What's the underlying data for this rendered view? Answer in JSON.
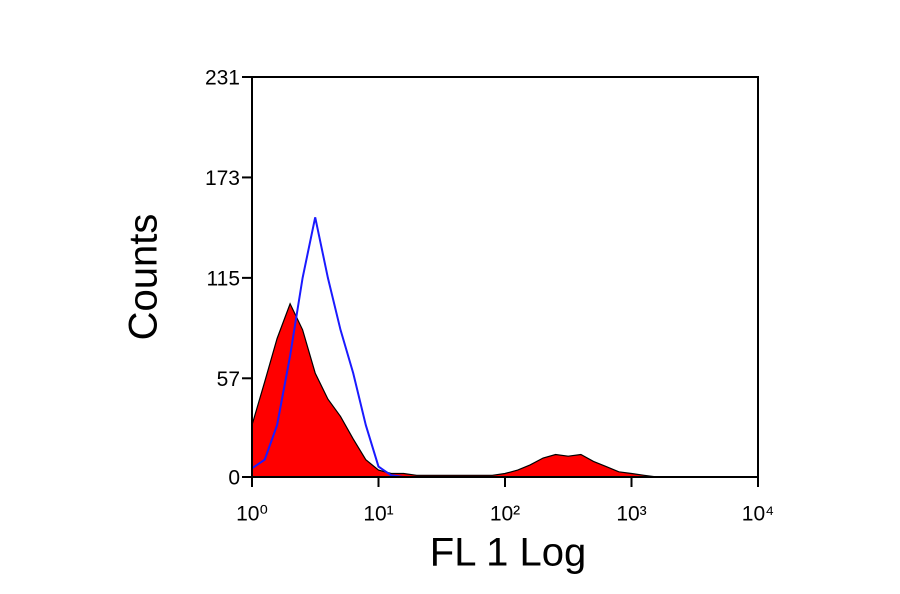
{
  "chart_data": {
    "type": "histogram-overlay",
    "xlabel": "FL 1 Log",
    "ylabel": "Counts",
    "xscale": "log",
    "xlim": [
      1,
      10000
    ],
    "xticks": [
      {
        "value": 1,
        "label": "10⁰"
      },
      {
        "value": 10,
        "label": "10¹"
      },
      {
        "value": 100,
        "label": "10²"
      },
      {
        "value": 1000,
        "label": "10³"
      },
      {
        "value": 10000,
        "label": "10⁴"
      }
    ],
    "ylim": [
      0,
      231
    ],
    "yticks": [
      0,
      57,
      115,
      173,
      231
    ],
    "x": [
      1,
      1.26,
      1.58,
      2,
      2.51,
      3.16,
      3.98,
      5.01,
      6.31,
      7.94,
      10,
      12.6,
      15.8,
      20,
      25.1,
      31.6,
      39.8,
      50.1,
      63.1,
      79.4,
      100,
      126,
      158,
      200,
      251,
      316,
      398,
      501,
      631,
      794,
      1000,
      1259,
      1585
    ],
    "series": [
      {
        "color": "#ff0000",
        "filled": true,
        "values": [
          30,
          55,
          80,
          100,
          85,
          60,
          45,
          35,
          22,
          10,
          4,
          2,
          2,
          1,
          1,
          1,
          1,
          1,
          1,
          1,
          2,
          4,
          7,
          11,
          13,
          12,
          13,
          9,
          6,
          3,
          2,
          1,
          0
        ]
      },
      {
        "color": "#1a1aff",
        "filled": false,
        "values": [
          5,
          10,
          30,
          70,
          115,
          150,
          115,
          85,
          60,
          30,
          6,
          1,
          0,
          0,
          0,
          0,
          0,
          0,
          0,
          0,
          0,
          0,
          0,
          0,
          0,
          0,
          0,
          0,
          0,
          0,
          0,
          0,
          0
        ]
      }
    ]
  }
}
